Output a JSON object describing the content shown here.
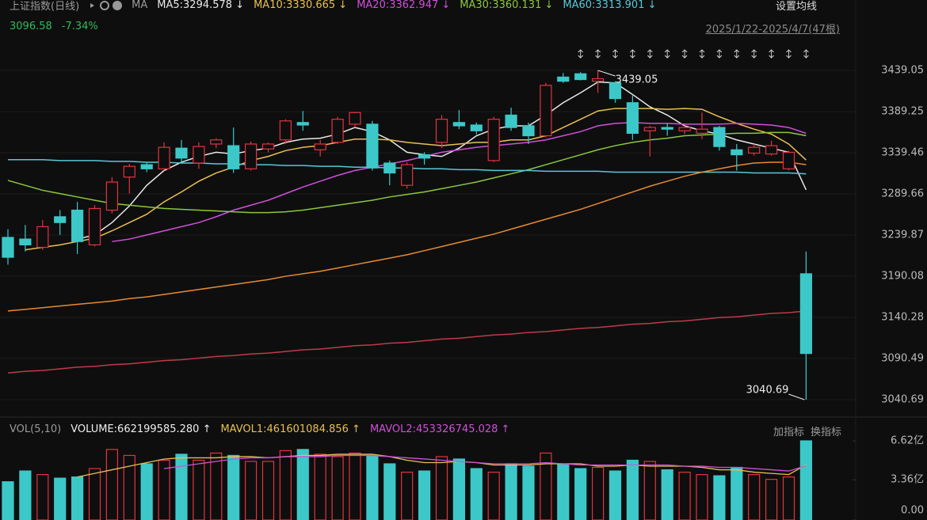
{
  "header": {
    "title": "上证指数(日线)",
    "ma_label": "MA",
    "settings": "设置均线",
    "price": "3096.58",
    "change": "-7.34%",
    "date_range": "2025/1/22-2025/4/7(47根)"
  },
  "chart_data": [
    {
      "type": "candlestick",
      "up_color": "#e5323e",
      "down_color": "#3cc8c8",
      "ylim": [
        3026.3,
        3466.8
      ],
      "yticks": [
        3439.05,
        3389.25,
        3339.46,
        3289.66,
        3239.87,
        3190.08,
        3140.28,
        3090.49,
        3040.69
      ],
      "open": [
        3237,
        3235,
        3225,
        3262,
        3270,
        3228,
        3270,
        3310,
        3325,
        3320,
        3345,
        3327,
        3350,
        3348,
        3320,
        3344,
        3355,
        3376,
        3343,
        3352,
        3374,
        3374,
        3327,
        3300,
        3337,
        3352,
        3376,
        3373,
        3330,
        3385,
        3372,
        3360,
        3431,
        3435,
        3426,
        3424,
        3400,
        3366,
        3370,
        3366,
        3363,
        3370,
        3343,
        3339,
        3338,
        3320,
        3193
      ],
      "high": [
        3247,
        3252,
        3258,
        3270,
        3280,
        3276,
        3310,
        3326,
        3328,
        3352,
        3355,
        3352,
        3357,
        3370,
        3353,
        3352,
        3380,
        3390,
        3355,
        3383,
        3389,
        3378,
        3330,
        3328,
        3340,
        3385,
        3391,
        3376,
        3383,
        3394,
        3376,
        3424,
        3436,
        3437,
        3439.05,
        3426,
        3410,
        3372,
        3375,
        3372,
        3388,
        3372,
        3350,
        3350,
        3354,
        3342,
        3220
      ],
      "low": [
        3204,
        3220,
        3222,
        3240,
        3217,
        3226,
        3266,
        3290,
        3316,
        3318,
        3328,
        3320,
        3345,
        3315,
        3318,
        3340,
        3350,
        3366,
        3335,
        3350,
        3370,
        3318,
        3300,
        3296,
        3325,
        3345,
        3368,
        3362,
        3328,
        3366,
        3350,
        3358,
        3424,
        3427,
        3412,
        3400,
        3355,
        3335,
        3360,
        3362,
        3356,
        3342,
        3318,
        3336,
        3336,
        3318,
        3040.69
      ],
      "close": [
        3213,
        3228,
        3250,
        3255,
        3232,
        3272,
        3304,
        3323,
        3320,
        3346,
        3333,
        3347,
        3355,
        3320,
        3350,
        3350,
        3378,
        3373,
        3350,
        3380,
        3388,
        3321,
        3315,
        3325,
        3333,
        3380,
        3372,
        3366,
        3380,
        3370,
        3360,
        3421,
        3426,
        3428,
        3429,
        3405,
        3363,
        3370,
        3368,
        3370,
        3368,
        3347,
        3337,
        3346,
        3348,
        3340,
        3096.58
      ],
      "series": [
        {
          "name": "MA5:3294.578 ↓",
          "color": "#e8e8e8",
          "values": [
            null,
            null,
            null,
            null,
            3235,
            3240,
            3255,
            3275,
            3300,
            3318,
            3328,
            3335,
            3340,
            3338,
            3342,
            3345,
            3352,
            3356,
            3357,
            3362,
            3370,
            3365,
            3355,
            3340,
            3337,
            3335,
            3345,
            3360,
            3368,
            3372,
            3372,
            3385,
            3400,
            3412,
            3425,
            3424,
            3410,
            3395,
            3385,
            3372,
            3366,
            3362,
            3355,
            3350,
            3345,
            3340,
            3294.578
          ]
        },
        {
          "name": "MA10:3330.665 ↓",
          "color": "#e8c050",
          "values": [
            null,
            3222,
            3225,
            3228,
            3232,
            3236,
            3245,
            3255,
            3265,
            3280,
            3292,
            3305,
            3315,
            3322,
            3330,
            3335,
            3342,
            3346,
            3348,
            3352,
            3356,
            3356,
            3355,
            3352,
            3350,
            3348,
            3350,
            3352,
            3352,
            3355,
            3355,
            3360,
            3370,
            3380,
            3390,
            3393,
            3393,
            3393,
            3392,
            3393,
            3392,
            3383,
            3375,
            3368,
            3362,
            3350,
            3330.665
          ]
        },
        {
          "name": "MA20:3362.947 ↓",
          "color": "#d050d8",
          "values": [
            null,
            null,
            null,
            null,
            null,
            null,
            3232,
            3235,
            3240,
            3245,
            3250,
            3255,
            3262,
            3270,
            3276,
            3282,
            3290,
            3298,
            3305,
            3312,
            3318,
            3322,
            3326,
            3330,
            3335,
            3340,
            3343,
            3346,
            3348,
            3350,
            3352,
            3355,
            3360,
            3365,
            3372,
            3375,
            3376,
            3375,
            3375,
            3374,
            3374,
            3374,
            3375,
            3374,
            3373,
            3370,
            3362.947
          ]
        },
        {
          "name": "MA30:3360.131 ↓",
          "color": "#8cc83c",
          "values": [
            3306,
            3300,
            3294,
            3290,
            3286,
            3282,
            3278,
            3276,
            3274,
            3272,
            3271,
            3270,
            3269,
            3268,
            3267,
            3267,
            3268,
            3270,
            3273,
            3276,
            3279,
            3282,
            3286,
            3289,
            3292,
            3296,
            3300,
            3304,
            3309,
            3314,
            3319,
            3325,
            3331,
            3337,
            3343,
            3348,
            3352,
            3355,
            3357,
            3360,
            3361,
            3362,
            3363,
            3363,
            3364,
            3364,
            3360.131
          ]
        },
        {
          "name": "MA60:3313.901 ↓",
          "color": "#58c8d8",
          "values": [
            3331,
            3331,
            3331,
            3330,
            3330,
            3330,
            3329,
            3329,
            3328,
            3328,
            3327,
            3327,
            3326,
            3326,
            3325,
            3325,
            3324,
            3324,
            3323,
            3323,
            3322,
            3322,
            3321,
            3321,
            3320,
            3320,
            3319,
            3319,
            3318,
            3318,
            3318,
            3317,
            3317,
            3317,
            3317,
            3316,
            3316,
            3316,
            3316,
            3316,
            3316,
            3316,
            3316,
            3315,
            3315,
            3315,
            3313.901
          ]
        },
        {
          "color": "#e88a30",
          "values": [
            3148,
            3150,
            3152,
            3154,
            3156,
            3158,
            3160,
            3163,
            3165,
            3168,
            3171,
            3174,
            3177,
            3180,
            3183,
            3186,
            3190,
            3193,
            3196,
            3200,
            3204,
            3208,
            3212,
            3216,
            3221,
            3226,
            3231,
            3236,
            3241,
            3247,
            3253,
            3259,
            3265,
            3271,
            3278,
            3285,
            3292,
            3299,
            3305,
            3311,
            3316,
            3320,
            3324,
            3327,
            3328,
            3328,
            3325
          ]
        },
        {
          "color": "#c03a4a",
          "values": [
            3073,
            3075,
            3076,
            3078,
            3080,
            3081,
            3083,
            3084,
            3086,
            3088,
            3089,
            3091,
            3093,
            3094,
            3096,
            3097,
            3099,
            3101,
            3102,
            3104,
            3106,
            3107,
            3109,
            3110,
            3112,
            3114,
            3115,
            3117,
            3119,
            3120,
            3122,
            3123,
            3125,
            3127,
            3128,
            3130,
            3132,
            3133,
            3135,
            3136,
            3138,
            3140,
            3141,
            3143,
            3145,
            3146,
            3148
          ]
        }
      ]
    },
    {
      "type": "volume",
      "title": "VOL(5,10)",
      "value_name": "VOLUME:662199585.280 ↑",
      "buttons": [
        "加指标",
        "换指标"
      ],
      "ylim": [
        0,
        6.62
      ],
      "yticks": [
        {
          "value": 6.62,
          "label": "6.62亿"
        },
        {
          "value": 3.36,
          "label": "3.36亿"
        },
        {
          "value": 0,
          "label": "0.00"
        }
      ],
      "values": [
        3.2,
        4.1,
        3.8,
        3.5,
        3.6,
        4.3,
        5.9,
        5.4,
        4.7,
        5.0,
        5.5,
        5.0,
        5.6,
        5.4,
        4.9,
        4.9,
        5.8,
        5.9,
        5.5,
        5.3,
        5.6,
        5.4,
        4.7,
        4.0,
        4.1,
        5.3,
        5.1,
        4.3,
        4.0,
        4.7,
        4.5,
        5.6,
        4.7,
        4.3,
        4.4,
        4.1,
        5.0,
        4.9,
        4.2,
        4.0,
        3.8,
        3.7,
        4.4,
        3.8,
        3.4,
        3.6,
        6.62
      ],
      "series": [
        {
          "name": "MAVOL1:461601084.856 ↑",
          "color": "#e8c050",
          "values": [
            null,
            null,
            null,
            null,
            3.6,
            3.9,
            4.2,
            4.5,
            4.8,
            5.1,
            5.2,
            5.2,
            5.2,
            5.3,
            5.3,
            5.2,
            5.3,
            5.4,
            5.4,
            5.5,
            5.5,
            5.5,
            5.3,
            5.0,
            4.8,
            4.8,
            4.9,
            4.8,
            4.6,
            4.6,
            4.6,
            4.7,
            4.7,
            4.7,
            4.5,
            4.5,
            4.6,
            4.5,
            4.5,
            4.5,
            4.4,
            4.2,
            4.2,
            4.0,
            3.9,
            3.8,
            4.62
          ]
        },
        {
          "name": "MAVOL2:453326745.028 ↑",
          "color": "#d050d8",
          "values": [
            null,
            null,
            null,
            null,
            null,
            null,
            null,
            null,
            null,
            4.3,
            4.5,
            4.7,
            4.9,
            5.1,
            5.2,
            5.2,
            5.3,
            5.3,
            5.3,
            5.4,
            5.4,
            5.4,
            5.3,
            5.2,
            5.1,
            5.0,
            4.9,
            4.8,
            4.7,
            4.7,
            4.7,
            4.8,
            4.7,
            4.6,
            4.6,
            4.6,
            4.6,
            4.6,
            4.6,
            4.5,
            4.5,
            4.4,
            4.4,
            4.3,
            4.2,
            4.1,
            4.53
          ]
        }
      ]
    }
  ]
}
